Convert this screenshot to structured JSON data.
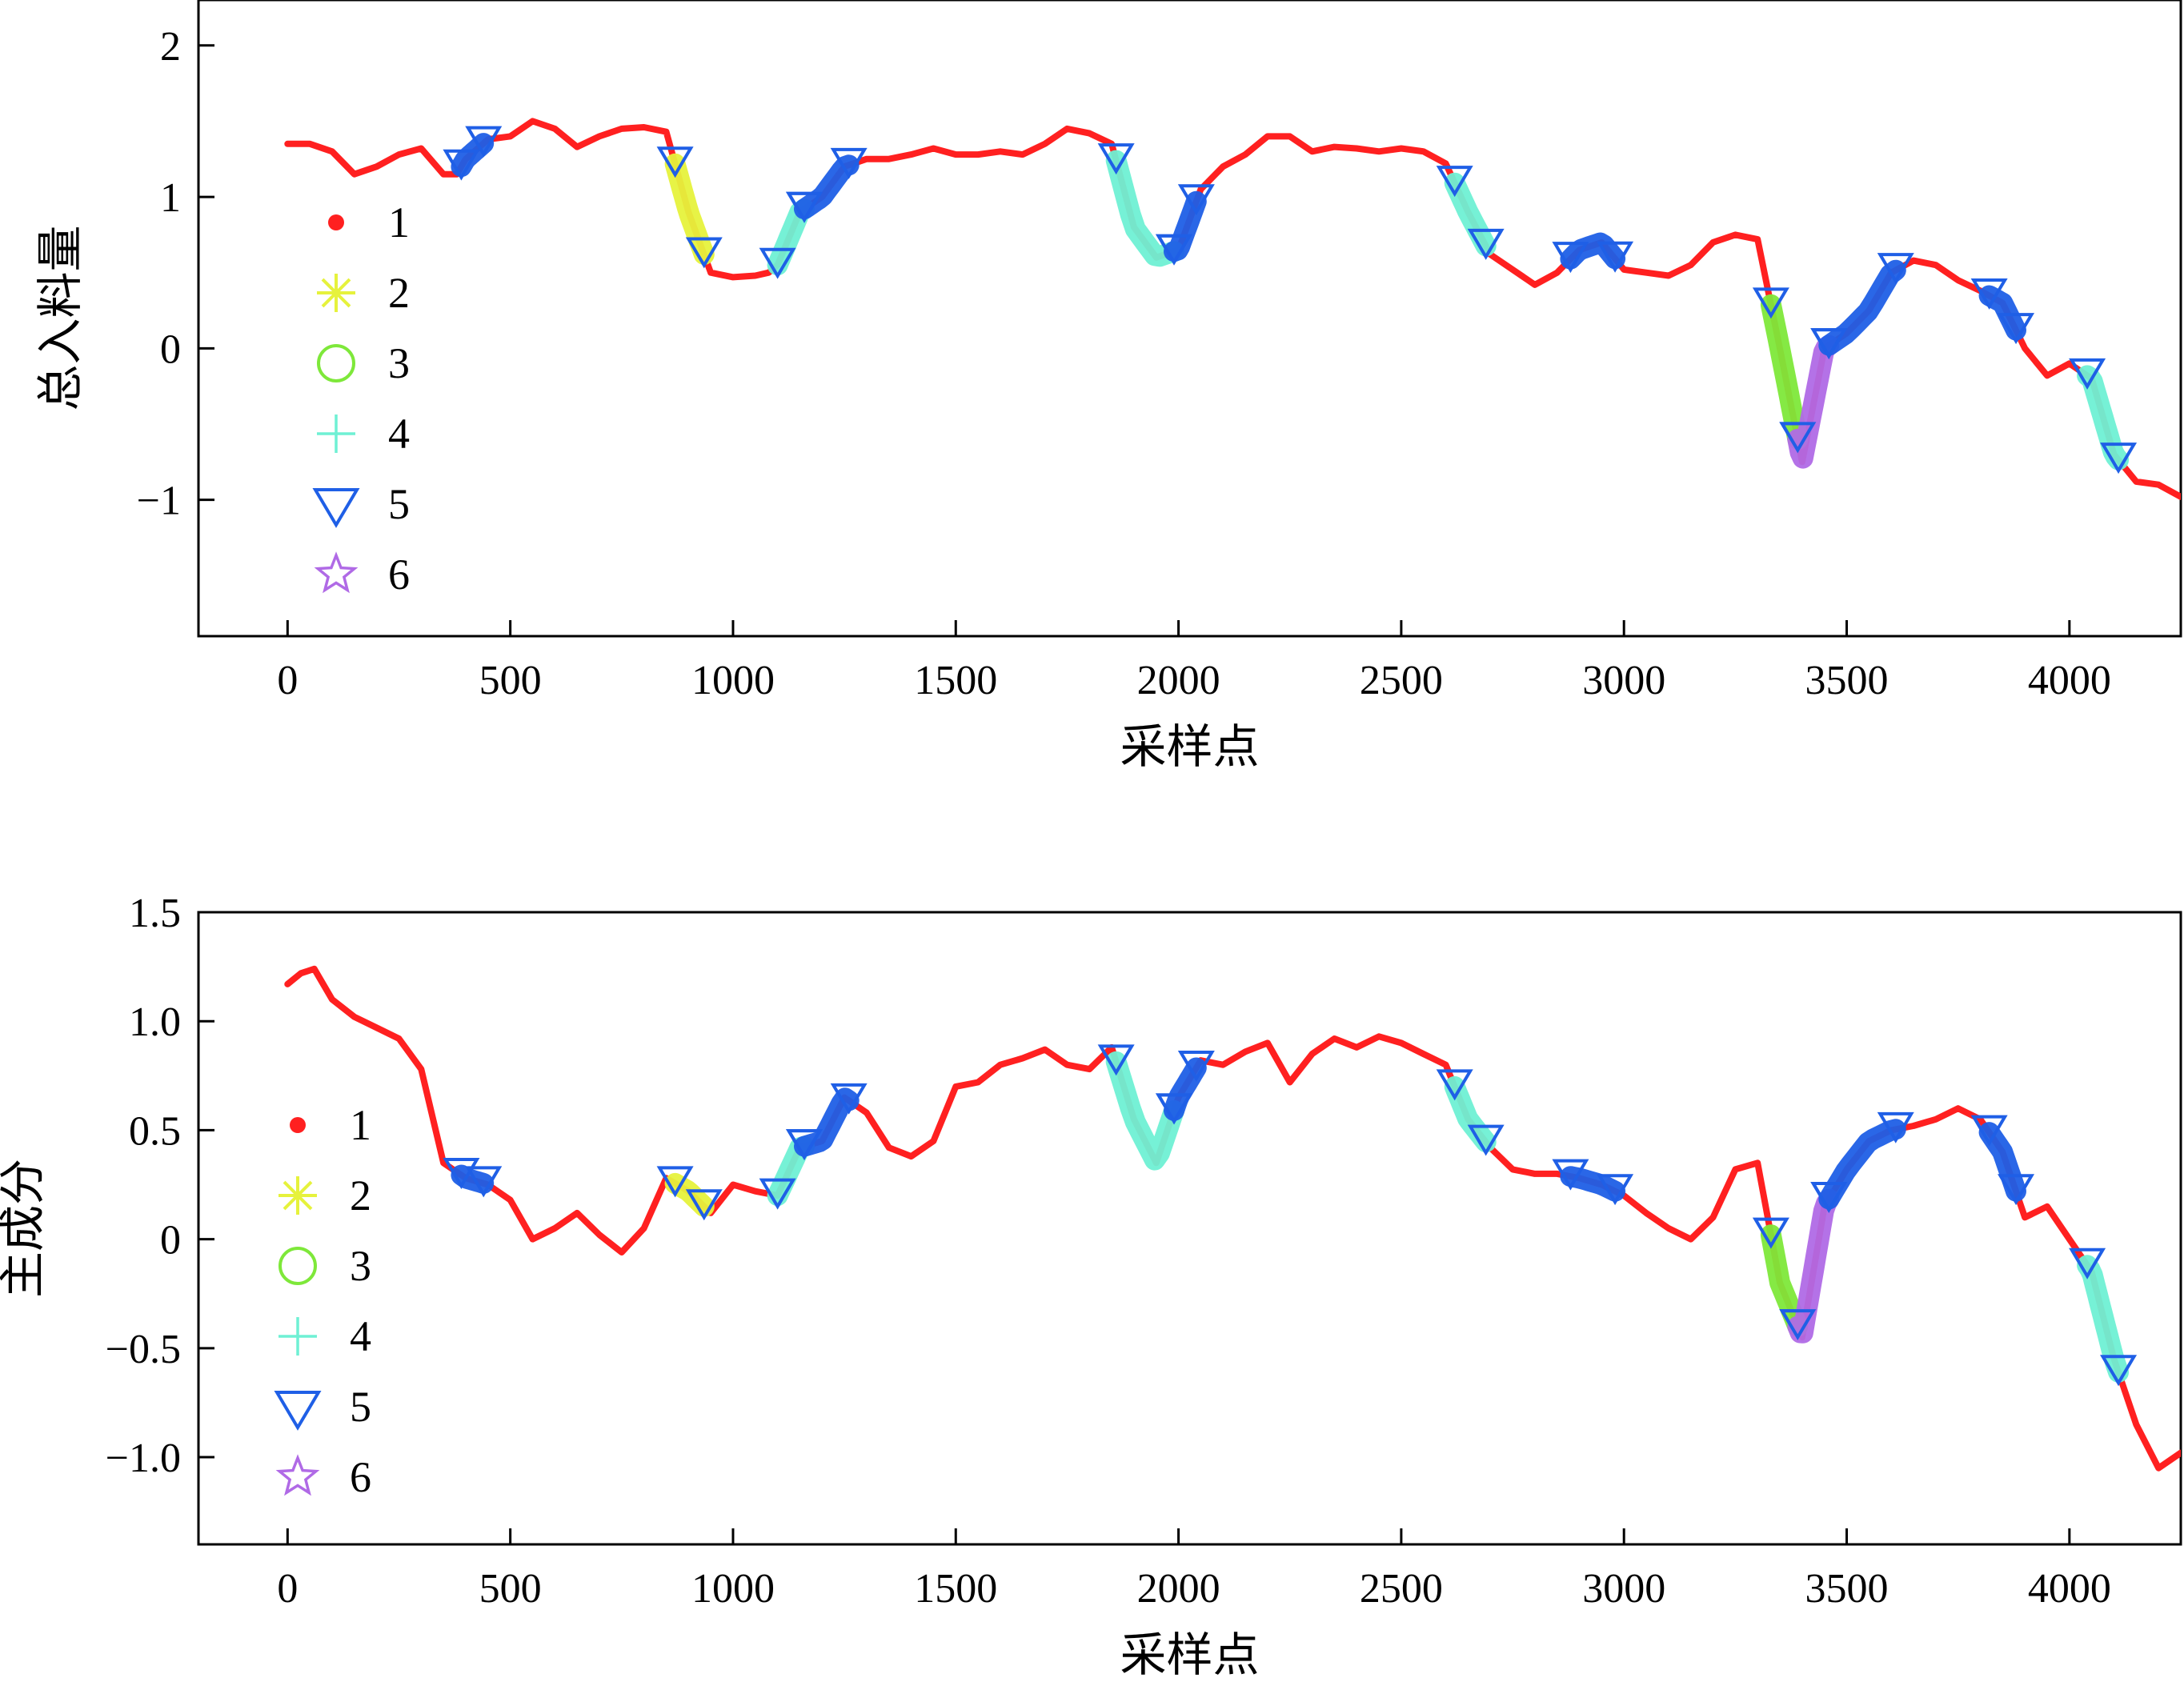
{
  "chart_data": [
    {
      "type": "line",
      "xlabel": "采样点",
      "ylabel": "总入料量",
      "xlim": [
        -200,
        4250
      ],
      "ylim": [
        -1.9,
        2.3
      ],
      "xticks": [
        0,
        500,
        1000,
        1500,
        2000,
        2500,
        3000,
        3500,
        4000
      ],
      "xtick_labels": [
        "0",
        "500",
        "1000",
        "1500",
        "2000",
        "2500",
        "3000",
        "3500",
        "4000"
      ],
      "yticks": [
        2,
        1,
        0,
        -1
      ],
      "ytick_labels": [
        "2",
        "1",
        "0",
        "−1"
      ],
      "legend_position": "left",
      "legend": [
        {
          "label": "1",
          "marker": "dot",
          "color": "#ff2020"
        },
        {
          "label": "2",
          "marker": "asterisk",
          "color": "#e6f23c"
        },
        {
          "label": "3",
          "marker": "circle",
          "color": "#7ee83a"
        },
        {
          "label": "4",
          "marker": "plus",
          "color": "#6ff0d4"
        },
        {
          "label": "5",
          "marker": "triangle-down",
          "color": "#1f5fe6"
        },
        {
          "label": "6",
          "marker": "star",
          "color": "#b06ae6"
        }
      ],
      "series": [
        {
          "name": "1",
          "x": [
            0,
            50,
            100,
            150,
            200,
            250,
            300,
            350,
            380,
            400,
            450,
            500,
            550,
            600,
            650,
            700,
            750,
            800,
            850,
            900,
            950,
            1000,
            1050,
            1080,
            1100,
            1150,
            1200,
            1250,
            1300,
            1350,
            1400,
            1450,
            1500,
            1550,
            1600,
            1650,
            1700,
            1750,
            1800,
            1850,
            1900,
            1950,
            2000,
            2050,
            2100,
            2150,
            2200,
            2250,
            2300,
            2350,
            2400,
            2450,
            2500,
            2550,
            2600,
            2650,
            2700,
            2750,
            2800,
            2850,
            2900,
            2950,
            3000,
            3050,
            3100,
            3150,
            3200,
            3250,
            3300,
            3350,
            3400,
            3450,
            3500,
            3550,
            3600,
            3650,
            3700,
            3750,
            3800,
            3850,
            3900,
            3950,
            4000,
            4050,
            4100,
            4150,
            4200,
            4250
          ],
          "y": [
            1.35,
            1.35,
            1.3,
            1.15,
            1.2,
            1.28,
            1.32,
            1.15,
            1.15,
            1.25,
            1.38,
            1.4,
            1.5,
            1.45,
            1.33,
            1.4,
            1.45,
            1.46,
            1.43,
            0.9,
            0.5,
            0.47,
            0.48,
            0.5,
            0.55,
            0.9,
            1.0,
            1.2,
            1.25,
            1.25,
            1.28,
            1.32,
            1.28,
            1.28,
            1.3,
            1.28,
            1.35,
            1.45,
            1.42,
            1.35,
            0.8,
            0.6,
            0.65,
            1.05,
            1.2,
            1.28,
            1.4,
            1.4,
            1.3,
            1.33,
            1.32,
            1.3,
            1.32,
            1.3,
            1.22,
            0.9,
            0.62,
            0.52,
            0.42,
            0.5,
            0.65,
            0.7,
            0.52,
            0.5,
            0.48,
            0.55,
            0.7,
            0.75,
            0.72,
            0.0,
            -0.75,
            0.0,
            0.1,
            0.25,
            0.5,
            0.58,
            0.55,
            0.45,
            0.38,
            0.3,
            0.0,
            -0.18,
            -0.1,
            -0.2,
            -0.7,
            -0.88,
            -0.9,
            -0.98
          ]
        }
      ],
      "highlight_segments": [
        {
          "class": "5",
          "x": [
            390,
            440
          ]
        },
        {
          "class": "2",
          "x": [
            870,
            935
          ]
        },
        {
          "class": "4",
          "x": [
            1100,
            1160
          ]
        },
        {
          "class": "5",
          "x": [
            1160,
            1260
          ]
        },
        {
          "class": "4",
          "x": [
            1860,
            1990
          ]
        },
        {
          "class": "5",
          "x": [
            1990,
            2040
          ]
        },
        {
          "class": "4",
          "x": [
            2620,
            2690
          ]
        },
        {
          "class": "5",
          "x": [
            2880,
            2980
          ]
        },
        {
          "class": "3",
          "x": [
            3330,
            3390
          ]
        },
        {
          "class": "6",
          "x": [
            3390,
            3460
          ]
        },
        {
          "class": "5",
          "x": [
            3460,
            3610
          ]
        },
        {
          "class": "5",
          "x": [
            3820,
            3880
          ]
        },
        {
          "class": "4",
          "x": [
            4040,
            4110
          ]
        }
      ]
    },
    {
      "type": "line",
      "xlabel": "采样点",
      "ylabel": "主成分",
      "xlim": [
        -200,
        4250
      ],
      "ylim": [
        -1.4,
        1.5
      ],
      "xticks": [
        0,
        500,
        1000,
        1500,
        2000,
        2500,
        3000,
        3500,
        4000
      ],
      "xtick_labels": [
        "0",
        "500",
        "1000",
        "1500",
        "2000",
        "2500",
        "3000",
        "3500",
        "4000"
      ],
      "yticks": [
        1.5,
        1.0,
        0.5,
        0,
        -0.5,
        -1.0
      ],
      "ytick_labels": [
        "1.5",
        "1.0",
        "0.5",
        "0",
        "−0.5",
        "−1.0"
      ],
      "legend_position": "left",
      "legend": [
        {
          "label": "1",
          "marker": "dot",
          "color": "#ff2020"
        },
        {
          "label": "2",
          "marker": "asterisk",
          "color": "#e6f23c"
        },
        {
          "label": "3",
          "marker": "circle",
          "color": "#7ee83a"
        },
        {
          "label": "4",
          "marker": "plus",
          "color": "#6ff0d4"
        },
        {
          "label": "5",
          "marker": "triangle-down",
          "color": "#1f5fe6"
        },
        {
          "label": "6",
          "marker": "star",
          "color": "#b06ae6"
        }
      ],
      "series": [
        {
          "name": "1",
          "x": [
            0,
            30,
            60,
            100,
            150,
            200,
            250,
            300,
            350,
            400,
            450,
            500,
            550,
            600,
            650,
            700,
            750,
            800,
            850,
            900,
            950,
            1000,
            1050,
            1100,
            1150,
            1200,
            1250,
            1300,
            1350,
            1400,
            1450,
            1500,
            1550,
            1600,
            1650,
            1700,
            1750,
            1800,
            1850,
            1900,
            1950,
            2000,
            2050,
            2100,
            2150,
            2200,
            2250,
            2300,
            2350,
            2400,
            2450,
            2500,
            2550,
            2600,
            2650,
            2700,
            2750,
            2800,
            2850,
            2900,
            2950,
            3000,
            3050,
            3100,
            3150,
            3200,
            3250,
            3300,
            3350,
            3400,
            3450,
            3500,
            3550,
            3600,
            3650,
            3700,
            3750,
            3800,
            3850,
            3900,
            3950,
            4000,
            4050,
            4100,
            4150,
            4200,
            4250
          ],
          "y": [
            1.17,
            1.22,
            1.24,
            1.1,
            1.02,
            0.97,
            0.92,
            0.78,
            0.35,
            0.28,
            0.25,
            0.18,
            0.0,
            0.05,
            0.12,
            0.02,
            -0.06,
            0.05,
            0.28,
            0.22,
            0.12,
            0.25,
            0.22,
            0.2,
            0.42,
            0.45,
            0.65,
            0.58,
            0.42,
            0.38,
            0.45,
            0.7,
            0.72,
            0.8,
            0.83,
            0.87,
            0.8,
            0.78,
            0.88,
            0.55,
            0.35,
            0.65,
            0.82,
            0.8,
            0.86,
            0.9,
            0.72,
            0.85,
            0.92,
            0.88,
            0.93,
            0.9,
            0.85,
            0.8,
            0.55,
            0.42,
            0.32,
            0.3,
            0.3,
            0.28,
            0.25,
            0.2,
            0.12,
            0.05,
            0.0,
            0.1,
            0.32,
            0.35,
            -0.2,
            -0.45,
            0.15,
            0.32,
            0.45,
            0.5,
            0.52,
            0.55,
            0.6,
            0.55,
            0.4,
            0.1,
            0.15,
            0.0,
            -0.15,
            -0.55,
            -0.85,
            -1.05,
            -0.98
          ]
        }
      ],
      "highlight_segments": [
        {
          "class": "5",
          "x": [
            390,
            440
          ]
        },
        {
          "class": "2",
          "x": [
            870,
            935
          ]
        },
        {
          "class": "4",
          "x": [
            1100,
            1160
          ]
        },
        {
          "class": "5",
          "x": [
            1160,
            1260
          ]
        },
        {
          "class": "4",
          "x": [
            1860,
            1990
          ]
        },
        {
          "class": "5",
          "x": [
            1990,
            2040
          ]
        },
        {
          "class": "4",
          "x": [
            2620,
            2690
          ]
        },
        {
          "class": "5",
          "x": [
            2880,
            2980
          ]
        },
        {
          "class": "3",
          "x": [
            3330,
            3390
          ]
        },
        {
          "class": "6",
          "x": [
            3390,
            3460
          ]
        },
        {
          "class": "5",
          "x": [
            3460,
            3610
          ]
        },
        {
          "class": "5",
          "x": [
            3820,
            3880
          ]
        },
        {
          "class": "4",
          "x": [
            4040,
            4110
          ]
        }
      ]
    }
  ]
}
